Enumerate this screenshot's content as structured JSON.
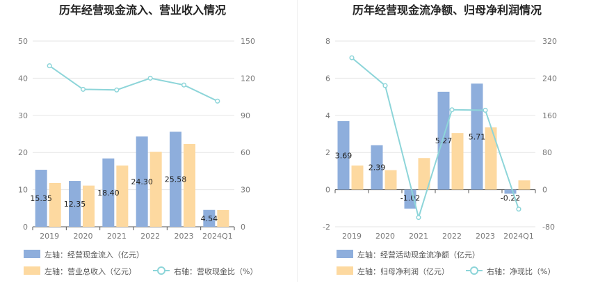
{
  "charts": [
    {
      "title": "历年经营现金流入、营业收入情况",
      "legend": [
        {
          "label": "左轴：经营现金流入（亿元）",
          "kind": "bar",
          "color": "#8eaedc"
        },
        {
          "label": "左轴：营业总收入（亿元）",
          "kind": "bar",
          "color": "#fdd9a0"
        },
        {
          "label": "右轴：营收现金比（%）",
          "kind": "line",
          "color": "#8dd5d9"
        }
      ]
    },
    {
      "title": "历年经营现金流净额、归母净利润情况",
      "legend": [
        {
          "label": "左轴：经营活动现金流净额（亿元）",
          "kind": "bar",
          "color": "#8eaedc"
        },
        {
          "label": "左轴：归母净利润（亿元）",
          "kind": "bar",
          "color": "#fdd9a0"
        },
        {
          "label": "右轴：净现比（%）",
          "kind": "line",
          "color": "#8dd5d9"
        }
      ]
    }
  ],
  "chart_data": [
    {
      "type": "bar",
      "title": "历年经营现金流入、营业收入情况",
      "categories": [
        "2019",
        "2020",
        "2021",
        "2022",
        "2023",
        "2024Q1"
      ],
      "ylim": [
        0,
        50
      ],
      "yticks": [
        0,
        10,
        20,
        30,
        40,
        50
      ],
      "y2lim": [
        0,
        150
      ],
      "y2ticks": [
        0,
        30,
        60,
        90,
        120,
        150
      ],
      "series": [
        {
          "name": "左轴：经营现金流入（亿元）",
          "type": "bar",
          "axis": "left",
          "color": "#8eaedc",
          "values": [
            15.35,
            12.35,
            18.4,
            24.3,
            25.58,
            4.54
          ],
          "labels": [
            "15.35",
            "12.35",
            "18.40",
            "24.30",
            "25.58",
            "4.54"
          ]
        },
        {
          "name": "左轴：营业总收入（亿元）",
          "type": "bar",
          "axis": "left",
          "color": "#fdd9a0",
          "values": [
            11.8,
            11.1,
            16.5,
            20.2,
            22.3,
            4.5
          ]
        },
        {
          "name": "右轴：营收现金比（%）",
          "type": "line",
          "axis": "right",
          "color": "#8dd5d9",
          "values": [
            130,
            111,
            110.5,
            120,
            114.5,
            101.5
          ]
        }
      ],
      "legend_position": "bottom",
      "grid": true
    },
    {
      "type": "bar",
      "title": "历年经营现金流净额、归母净利润情况",
      "categories": [
        "2019",
        "2020",
        "2021",
        "2022",
        "2023",
        "2024Q1"
      ],
      "ylim": [
        -2,
        8
      ],
      "yticks": [
        -2,
        0,
        2,
        4,
        6,
        8
      ],
      "y2lim": [
        -80,
        320
      ],
      "y2ticks": [
        -80,
        0,
        80,
        160,
        240,
        320
      ],
      "series": [
        {
          "name": "左轴：经营活动现金流净额（亿元）",
          "type": "bar",
          "axis": "left",
          "color": "#8eaedc",
          "values": [
            3.69,
            2.39,
            -1.02,
            5.27,
            5.71,
            -0.22
          ],
          "labels": [
            "3.69",
            "2.39",
            "-1.02",
            "5.27",
            "5.71",
            "-0.22"
          ]
        },
        {
          "name": "左轴：归母净利润（亿元）",
          "type": "bar",
          "axis": "left",
          "color": "#fdd9a0",
          "values": [
            1.3,
            1.05,
            1.7,
            3.05,
            3.35,
            0.5
          ]
        },
        {
          "name": "右轴：净现比（%）",
          "type": "line",
          "axis": "right",
          "color": "#8dd5d9",
          "values": [
            284,
            224,
            -60,
            172,
            171,
            -42
          ]
        }
      ],
      "legend_position": "bottom",
      "grid": true
    }
  ]
}
